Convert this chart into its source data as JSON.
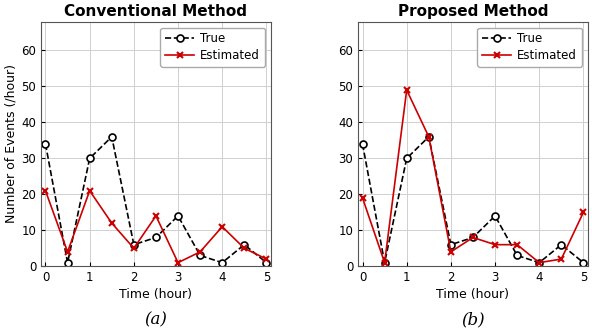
{
  "titles": [
    "Conventional Method",
    "Proposed Method"
  ],
  "xlabel": "Time (hour)",
  "ylabel": "Number of Events (/hour)",
  "xlim": [
    -0.1,
    5.1
  ],
  "ylim": [
    0,
    68
  ],
  "yticks": [
    0,
    10,
    20,
    30,
    40,
    50,
    60
  ],
  "xticks": [
    0,
    1,
    2,
    3,
    4,
    5
  ],
  "subplot_labels": [
    "(a)",
    "(b)"
  ],
  "conv_true_x": [
    0,
    0.5,
    1.0,
    1.5,
    2.0,
    2.5,
    3.0,
    3.5,
    4.0,
    4.5,
    5.0
  ],
  "conv_true_y": [
    34,
    1,
    30,
    36,
    6,
    8,
    14,
    3,
    1,
    6,
    1
  ],
  "conv_est_x": [
    0,
    0.5,
    1.0,
    1.5,
    2.0,
    2.5,
    3.0,
    3.5,
    4.0,
    4.5,
    5.0
  ],
  "conv_est_y": [
    21,
    4,
    21,
    12,
    5,
    14,
    1,
    4,
    11,
    5,
    2
  ],
  "prop_true_x": [
    0,
    0.5,
    1.0,
    1.5,
    2.0,
    2.5,
    3.0,
    3.5,
    4.0,
    4.5,
    5.0
  ],
  "prop_true_y": [
    34,
    1,
    30,
    36,
    6,
    8,
    14,
    3,
    1,
    6,
    1
  ],
  "prop_est_x": [
    0,
    0.5,
    1.0,
    1.5,
    2.0,
    2.5,
    3.0,
    3.5,
    4.0,
    4.5,
    5.0
  ],
  "prop_est_y": [
    19,
    1,
    49,
    36,
    4,
    8,
    6,
    6,
    1,
    2,
    15
  ],
  "true_color": "#000000",
  "est_color": "#cc0000",
  "true_marker": "o",
  "est_marker": "x",
  "linestyle_true": "--",
  "linestyle_est": "-",
  "linewidth": 1.2,
  "markersize": 5,
  "grid_color": "#d0d0d0",
  "background_color": "#ffffff",
  "title_fontsize": 11,
  "label_fontsize": 9,
  "tick_fontsize": 8.5,
  "legend_fontsize": 8.5
}
